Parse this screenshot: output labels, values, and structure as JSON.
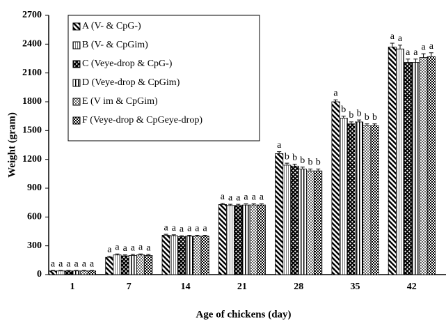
{
  "chart_data": {
    "type": "bar",
    "x_label": "Age of chickens (day)",
    "y_label": "Weight (gram)",
    "categories": [
      "1",
      "7",
      "14",
      "21",
      "28",
      "35",
      "42"
    ],
    "ylim": [
      0,
      2700
    ],
    "yticks": [
      0,
      300,
      600,
      900,
      1200,
      1500,
      1800,
      2100,
      2400,
      2700
    ],
    "legend": "upper-left",
    "series": [
      {
        "name": "A (V- & CpG-)",
        "values": [
          38,
          180,
          410,
          730,
          1260,
          1800,
          2370
        ],
        "errors": [
          5,
          10,
          10,
          12,
          20,
          20,
          40
        ],
        "labels": [
          "a",
          "a",
          "a",
          "a",
          "a",
          "a",
          "a"
        ]
      },
      {
        "name": "B (V- & CpGim)",
        "values": [
          38,
          205,
          405,
          720,
          1140,
          1630,
          2350
        ],
        "errors": [
          5,
          10,
          10,
          12,
          20,
          20,
          40
        ],
        "labels": [
          "a",
          "a",
          "a",
          "a",
          "b",
          "b",
          "a"
        ]
      },
      {
        "name": "C (Veye-drop & CpG-)",
        "values": [
          38,
          195,
          395,
          720,
          1130,
          1570,
          2210
        ],
        "errors": [
          5,
          10,
          10,
          12,
          20,
          20,
          35
        ],
        "labels": [
          "a",
          "a",
          "a",
          "a",
          "b",
          "b",
          "a"
        ]
      },
      {
        "name": "D (Veye-drop & CpGim)",
        "values": [
          38,
          200,
          400,
          725,
          1100,
          1590,
          2210
        ],
        "errors": [
          5,
          10,
          10,
          12,
          20,
          20,
          35
        ],
        "labels": [
          "a",
          "a",
          "a",
          "a",
          "b",
          "b",
          "a"
        ]
      },
      {
        "name": "E (V im & CpGim)",
        "values": [
          38,
          205,
          400,
          725,
          1080,
          1550,
          2260
        ],
        "errors": [
          5,
          10,
          10,
          12,
          20,
          20,
          40
        ],
        "labels": [
          "a",
          "a",
          "a",
          "a",
          "b",
          "b",
          "a"
        ]
      },
      {
        "name": "F (Veye-drop & CpGeye-drop)",
        "values": [
          38,
          200,
          400,
          725,
          1080,
          1550,
          2270
        ],
        "errors": [
          5,
          10,
          10,
          12,
          20,
          20,
          40
        ],
        "labels": [
          "a",
          "a",
          "a",
          "a",
          "b",
          "b",
          "a"
        ]
      }
    ]
  }
}
